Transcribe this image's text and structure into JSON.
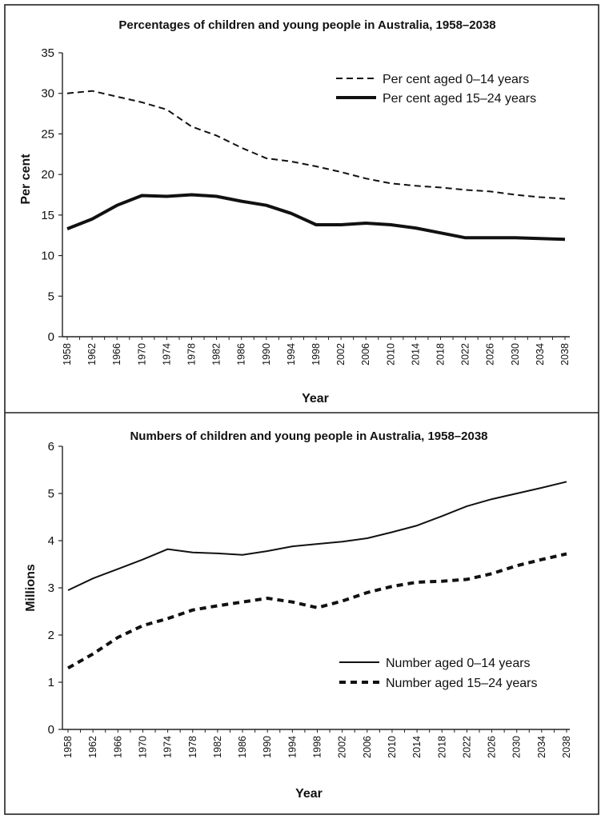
{
  "chart_data": [
    {
      "type": "line",
      "title": "Percentages of children and young people in Australia, 1958–2038",
      "xlabel": "Year",
      "ylabel": "Per cent",
      "ylim": [
        0,
        35
      ],
      "yticks": [
        "0",
        "5",
        "10",
        "15",
        "20",
        "25",
        "30",
        "35"
      ],
      "xticks": [
        "1958",
        "1962",
        "1966",
        "1970",
        "1974",
        "1978",
        "1982",
        "1986",
        "1990",
        "1994",
        "1998",
        "2002",
        "2006",
        "2010",
        "2014",
        "2018",
        "2022",
        "2026",
        "2030",
        "2034",
        "2038"
      ],
      "x": [
        1958,
        1962,
        1966,
        1970,
        1974,
        1978,
        1982,
        1986,
        1990,
        1994,
        1998,
        2002,
        2006,
        2010,
        2014,
        2018,
        2022,
        2026,
        2030,
        2034,
        2038
      ],
      "legend_position": "top-right",
      "series": [
        {
          "name": "Per cent aged 0–14 years",
          "style": "dashed-thin",
          "values": [
            30,
            30.3,
            29.6,
            28.9,
            28.0,
            25.9,
            24.8,
            23.3,
            22.0,
            21.6,
            21.0,
            20.3,
            19.5,
            18.9,
            18.6,
            18.4,
            18.1,
            17.9,
            17.5,
            17.2,
            17.0
          ]
        },
        {
          "name": "Per cent aged 15–24 years",
          "style": "solid-thick",
          "values": [
            13.3,
            14.5,
            16.2,
            17.4,
            17.3,
            17.5,
            17.3,
            16.7,
            16.2,
            15.2,
            13.8,
            13.8,
            14.0,
            13.8,
            13.4,
            12.8,
            12.2,
            12.2,
            12.2,
            12.1,
            12.0
          ]
        }
      ]
    },
    {
      "type": "line",
      "title": "Numbers of children and young people in Australia, 1958–2038",
      "xlabel": "Year",
      "ylabel": "Millions",
      "ylim": [
        0,
        6
      ],
      "yticks": [
        "0",
        "1",
        "2",
        "3",
        "4",
        "5",
        "6"
      ],
      "xticks": [
        "1958",
        "1962",
        "1966",
        "1970",
        "1974",
        "1978",
        "1982",
        "1986",
        "1990",
        "1994",
        "1998",
        "2002",
        "2006",
        "2010",
        "2014",
        "2018",
        "2022",
        "2026",
        "2030",
        "2034",
        "2038"
      ],
      "x": [
        1958,
        1962,
        1966,
        1970,
        1974,
        1978,
        1982,
        1986,
        1990,
        1994,
        1998,
        2002,
        2006,
        2010,
        2014,
        2018,
        2022,
        2026,
        2030,
        2034,
        2038
      ],
      "legend_position": "bottom-right",
      "series": [
        {
          "name": "Number aged 0–14 years",
          "style": "solid-thin",
          "values": [
            2.95,
            3.2,
            3.4,
            3.6,
            3.82,
            3.75,
            3.73,
            3.7,
            3.78,
            3.88,
            3.93,
            3.98,
            4.05,
            4.18,
            4.32,
            4.52,
            4.73,
            4.88,
            5.0,
            5.12,
            5.25
          ]
        },
        {
          "name": "Number aged 15–24 years",
          "style": "dashed-thick",
          "values": [
            1.3,
            1.6,
            1.95,
            2.2,
            2.35,
            2.53,
            2.62,
            2.7,
            2.78,
            2.7,
            2.58,
            2.72,
            2.9,
            3.03,
            3.12,
            3.14,
            3.18,
            3.3,
            3.47,
            3.6,
            3.72
          ]
        }
      ]
    }
  ]
}
